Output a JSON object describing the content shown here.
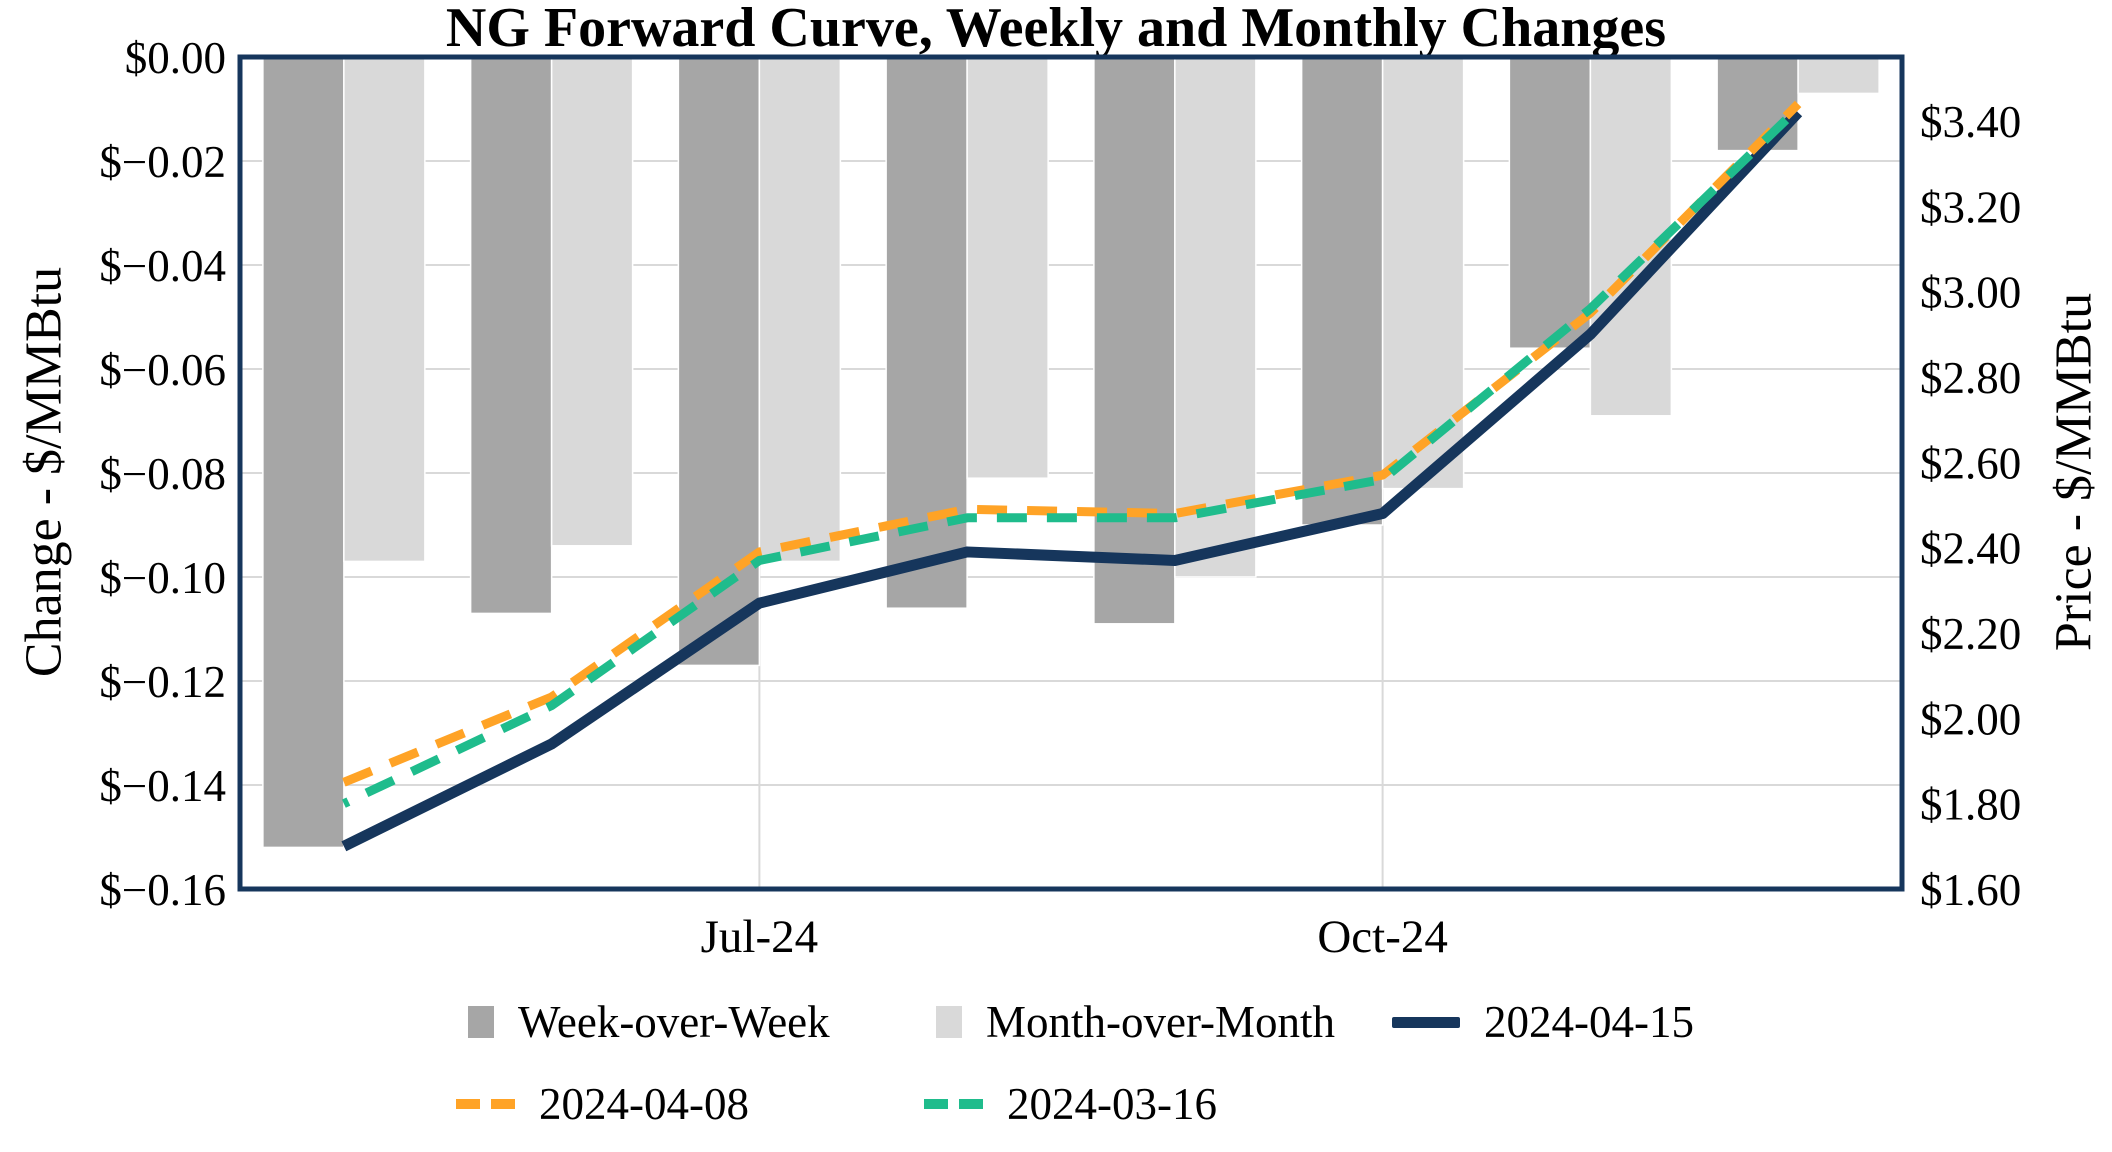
{
  "title": "NG Forward Curve, Weekly and Monthly Changes",
  "colors": {
    "week_over_week_bar": "#A6A6A6",
    "month_over_month_bar": "#D9D9D9",
    "line_2024_04_15": "#16365C",
    "line_2024_04_08": "#FFA326",
    "line_2024_03_16": "#1FBC8C",
    "plot_border": "#16365C",
    "gridline": "#D9D9D9",
    "text": "#000000"
  },
  "chart_data": {
    "type": "combo-bar-line",
    "title": "NG Forward Curve, Weekly and Monthly Changes",
    "n_points": 8,
    "x_tick_labels": [
      {
        "index": 2,
        "label": "Jul-24"
      },
      {
        "index": 5,
        "label": "Oct-24"
      }
    ],
    "left_axis": {
      "label": "Change - $/MMBtu",
      "min": -0.16,
      "max": 0,
      "ticks": [
        {
          "label": "$0.00",
          "value": 0
        },
        {
          "label": "$−0.02",
          "value": -0.02
        },
        {
          "label": "$−0.04",
          "value": -0.04
        },
        {
          "label": "$−0.06",
          "value": -0.06
        },
        {
          "label": "$−0.08",
          "value": -0.08
        },
        {
          "label": "$−0.10",
          "value": -0.1
        },
        {
          "label": "$−0.12",
          "value": -0.12
        },
        {
          "label": "$−0.14",
          "value": -0.14
        },
        {
          "label": "$−0.16",
          "value": -0.16
        }
      ]
    },
    "right_axis": {
      "label": "Price - $/MMBtu",
      "min": 1.6,
      "max": 3.55,
      "ticks": [
        {
          "label": "$3.40",
          "value": 3.4
        },
        {
          "label": "$3.20",
          "value": 3.2
        },
        {
          "label": "$3.00",
          "value": 3.0
        },
        {
          "label": "$2.80",
          "value": 2.8
        },
        {
          "label": "$2.60",
          "value": 2.6
        },
        {
          "label": "$2.40",
          "value": 2.4
        },
        {
          "label": "$2.20",
          "value": 2.2
        },
        {
          "label": "$2.00",
          "value": 2.0
        },
        {
          "label": "$1.80",
          "value": 1.8
        },
        {
          "label": "$1.60",
          "value": 1.6
        }
      ]
    },
    "bar_series": [
      {
        "name": "Week-over-Week",
        "axis": "left",
        "color": "#A6A6A6",
        "values": [
          -0.152,
          -0.107,
          -0.117,
          -0.106,
          -0.109,
          -0.09,
          -0.056,
          -0.018
        ]
      },
      {
        "name": "Month-over-Month",
        "axis": "left",
        "color": "#D9D9D9",
        "values": [
          -0.097,
          -0.094,
          -0.097,
          -0.081,
          -0.1,
          -0.083,
          -0.069,
          -0.007
        ]
      }
    ],
    "line_series": [
      {
        "name": "2024-04-15",
        "axis": "right",
        "color": "#16365C",
        "style": "solid",
        "width": 11,
        "values": [
          1.7,
          1.94,
          2.27,
          2.39,
          2.37,
          2.48,
          2.9,
          3.42
        ]
      },
      {
        "name": "2024-04-08",
        "axis": "right",
        "color": "#FFA326",
        "style": "dashed",
        "width": 9,
        "values": [
          1.85,
          2.05,
          2.39,
          2.49,
          2.48,
          2.57,
          2.95,
          3.44
        ]
      },
      {
        "name": "2024-03-16",
        "axis": "right",
        "color": "#1FBC8C",
        "style": "dashed",
        "width": 9,
        "values": [
          1.8,
          2.03,
          2.37,
          2.47,
          2.47,
          2.56,
          2.96,
          3.43
        ]
      }
    ],
    "grid": {
      "horizontal": true,
      "vertical_at_x_ticks": true
    },
    "legend_position": "bottom"
  },
  "legend": {
    "rows": [
      {
        "items": [
          {
            "label": "Week-over-Week",
            "key": "square",
            "color_ref": "week_over_week_bar"
          },
          {
            "label": "Month-over-Month",
            "key": "square",
            "color_ref": "month_over_month_bar"
          },
          {
            "label": "2024-04-15",
            "key": "line",
            "color_ref": "line_2024_04_15"
          }
        ]
      },
      {
        "items": [
          {
            "label": "2024-04-08",
            "key": "dashes",
            "color_ref": "line_2024_04_08"
          },
          {
            "label": "2024-03-16",
            "key": "dashes",
            "color_ref": "line_2024_03_16"
          }
        ]
      }
    ]
  }
}
